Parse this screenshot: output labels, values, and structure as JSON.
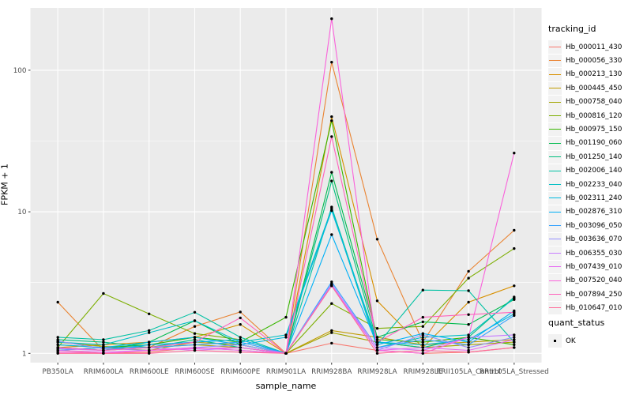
{
  "style": {
    "panel_bg": "#EBEBEB",
    "grid_color": "#FFFFFF",
    "axis_text_color": "#4D4D4D",
    "tick_mark_color": "#333333",
    "title_text_color": "#000000",
    "legend_key_bg": "#F2F2F2",
    "point_color": "#000000"
  },
  "chart_data": {
    "type": "line",
    "xlabel": "sample_name",
    "ylabel": "FPKM + 1",
    "y_scale": "log10",
    "y_ticks": [
      1,
      10,
      100
    ],
    "ylim": [
      1,
      320
    ],
    "grid": true,
    "legend_position": "right",
    "legend_title": "tracking_id",
    "quant_legend": {
      "title": "quant_status",
      "items": [
        {
          "label": "OK"
        }
      ]
    },
    "categories": [
      "PB350LA",
      "RRIM600LA",
      "RRIM600LE",
      "RRIM600SE",
      "RRIM600PE",
      "RRIM901LA",
      "RRIM928BA",
      "RRIM928LA",
      "RRIM928LE",
      "RRII105LA_Control",
      "RRII105LA_Stressed"
    ],
    "series": [
      {
        "name": "Hb_000011_430",
        "color": "#F8766D",
        "values": [
          1.05,
          1.0,
          1.02,
          1.1,
          1.05,
          1.0,
          1.18,
          1.05,
          1.0,
          1.02,
          1.1
        ]
      },
      {
        "name": "Hb_000056_330",
        "color": "#EA8331",
        "values": [
          2.3,
          1.05,
          1.1,
          1.55,
          1.96,
          1.0,
          114,
          6.4,
          1.2,
          3.8,
          7.4
        ]
      },
      {
        "name": "Hb_000213_130",
        "color": "#D89000",
        "values": [
          1.1,
          1.15,
          1.2,
          1.3,
          1.6,
          1.0,
          47,
          2.35,
          1.1,
          2.3,
          3.0
        ]
      },
      {
        "name": "Hb_000445_450",
        "color": "#C09B00",
        "values": [
          1.15,
          1.1,
          1.05,
          1.2,
          1.15,
          1.0,
          1.45,
          1.3,
          1.15,
          1.2,
          1.25
        ]
      },
      {
        "name": "Hb_000758_040",
        "color": "#A3A500",
        "values": [
          1.2,
          1.12,
          1.1,
          1.15,
          1.1,
          1.0,
          1.4,
          1.2,
          1.1,
          1.15,
          1.2
        ]
      },
      {
        "name": "Hb_000816_120",
        "color": "#7CAE00",
        "values": [
          1.1,
          2.65,
          1.9,
          1.38,
          1.25,
          1.0,
          2.25,
          1.5,
          1.55,
          3.4,
          5.5
        ]
      },
      {
        "name": "Hb_000975_150",
        "color": "#39B600",
        "values": [
          1.05,
          1.1,
          1.15,
          1.3,
          1.2,
          1.8,
          44,
          1.25,
          1.2,
          1.3,
          1.15
        ]
      },
      {
        "name": "Hb_001190_060",
        "color": "#00BB4E",
        "values": [
          1.1,
          1.05,
          1.2,
          1.7,
          1.15,
          1.0,
          19,
          1.3,
          1.67,
          1.6,
          2.4
        ]
      },
      {
        "name": "Hb_001250_140",
        "color": "#00BF7D",
        "values": [
          1.25,
          1.2,
          1.1,
          1.25,
          1.1,
          1.0,
          16.5,
          1.2,
          1.1,
          1.3,
          2.5
        ]
      },
      {
        "name": "Hb_002006_140",
        "color": "#00C1A3",
        "values": [
          1.3,
          1.25,
          1.45,
          1.95,
          1.3,
          1.0,
          10.8,
          1.15,
          2.8,
          2.77,
          1.2
        ]
      },
      {
        "name": "Hb_002233_040",
        "color": "#00BFC4",
        "values": [
          1.2,
          1.15,
          1.4,
          1.7,
          1.2,
          1.35,
          10.5,
          1.1,
          1.3,
          1.35,
          2.45
        ]
      },
      {
        "name": "Hb_002311_240",
        "color": "#00BAE0",
        "values": [
          1.15,
          1.1,
          1.2,
          1.3,
          1.15,
          1.3,
          10.2,
          1.2,
          1.15,
          1.25,
          1.9
        ]
      },
      {
        "name": "Hb_002876_310",
        "color": "#00B0F6",
        "values": [
          1.1,
          1.05,
          1.15,
          1.2,
          1.25,
          1.0,
          6.9,
          1.15,
          1.38,
          1.2,
          2.0
        ]
      },
      {
        "name": "Hb_003096_050",
        "color": "#35A2FF",
        "values": [
          1.05,
          1.1,
          1.1,
          1.15,
          1.2,
          1.0,
          3.2,
          1.1,
          1.25,
          1.15,
          1.85
        ]
      },
      {
        "name": "Hb_003636_070",
        "color": "#9590FF",
        "values": [
          1.22,
          1.08,
          1.05,
          1.1,
          1.15,
          1.0,
          3.1,
          1.05,
          1.35,
          1.1,
          1.3
        ]
      },
      {
        "name": "Hb_006355_030",
        "color": "#C77CFF",
        "values": [
          1.08,
          1.05,
          1.1,
          1.05,
          1.1,
          1.0,
          3.05,
          1.1,
          1.05,
          1.3,
          1.35
        ]
      },
      {
        "name": "Hb_007439_010",
        "color": "#E76BF3",
        "values": [
          1.05,
          1.02,
          1.05,
          1.1,
          1.05,
          1.0,
          3.0,
          1.05,
          1.1,
          1.05,
          1.25
        ]
      },
      {
        "name": "Hb_007520_040",
        "color": "#FA62DB",
        "values": [
          1.02,
          1.0,
          1.05,
          1.08,
          1.1,
          1.0,
          231,
          1.05,
          1.0,
          1.3,
          26
        ]
      },
      {
        "name": "Hb_007894_250",
        "color": "#FF62BC",
        "values": [
          1.1,
          1.05,
          1.1,
          1.2,
          1.78,
          1.0,
          34,
          1.2,
          1.8,
          1.88,
          1.95
        ]
      },
      {
        "name": "Hb_010647_010",
        "color": "#FF6A98",
        "values": [
          1.0,
          1.0,
          1.0,
          1.05,
          1.02,
          1.0,
          3.0,
          1.0,
          1.05,
          1.02,
          1.1
        ]
      }
    ]
  }
}
